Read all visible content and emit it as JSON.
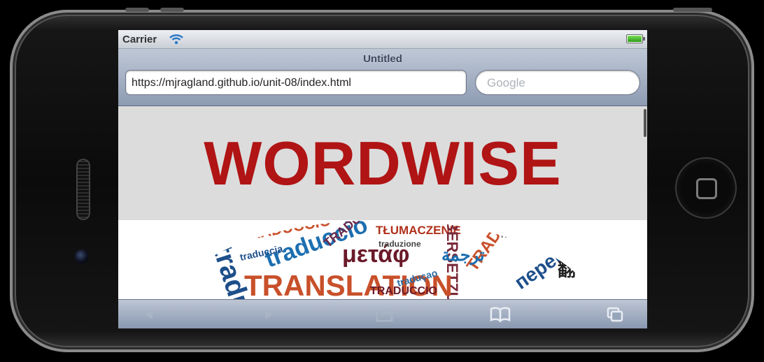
{
  "status_bar": {
    "carrier": "Carrier"
  },
  "browser": {
    "page_title": "Untitled",
    "url": "https://mjragland.github.io/unit-08/index.html",
    "search_placeholder": "Google"
  },
  "page": {
    "hero_title": "WORDWISE",
    "word_cloud": [
      "traduccio",
      "TRADUCCIÓ",
      "traducció",
      "traduccia",
      "TRADUCCIÓN",
      "TŁUMACZENIE",
      "μετάφ",
      "BERSETZUNG",
      "TRADUCCI N",
      "перевод",
      "TRANSLATION",
      "traduçao",
      "TRADUÇÃO",
      "traduzione",
      "翻",
      "ترجمة",
      "TRADUCCIO"
    ]
  },
  "toolbar": {
    "icons": [
      "back-icon",
      "forward-icon",
      "share-icon",
      "bookmarks-icon",
      "tabs-icon"
    ]
  },
  "colors": {
    "hero_title": "#b01414",
    "hero_background": "#dcdcdc",
    "chrome_top": "#bfc8d6",
    "chrome_bottom": "#8d9bb2"
  }
}
